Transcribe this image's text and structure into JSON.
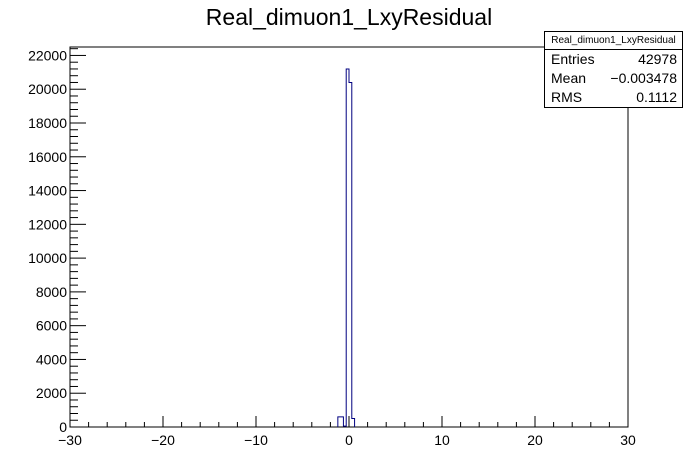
{
  "chart_data": {
    "type": "histogram",
    "title": "Real_dimuon1_LxyResidual",
    "xlabel": "",
    "ylabel": "",
    "xlim": [
      -30,
      30
    ],
    "ylim": [
      0,
      22500
    ],
    "x_ticks": [
      -30,
      -20,
      -10,
      0,
      10,
      20,
      30
    ],
    "x_tick_labels": [
      "−30",
      "−20",
      "−10",
      "0",
      "10",
      "20",
      "30"
    ],
    "y_ticks": [
      0,
      2000,
      4000,
      6000,
      8000,
      10000,
      12000,
      14000,
      16000,
      18000,
      20000,
      22000
    ],
    "y_tick_labels": [
      "0",
      "2000",
      "4000",
      "6000",
      "8000",
      "10000",
      "12000",
      "14000",
      "16000",
      "18000",
      "20000",
      "22000"
    ],
    "bin_width": 0.3,
    "bins": [
      {
        "x": -1.2,
        "value": 600
      },
      {
        "x": -0.9,
        "value": 600
      },
      {
        "x": -0.6,
        "value": 50
      },
      {
        "x": -0.3,
        "value": 21200
      },
      {
        "x": 0.0,
        "value": 20400
      },
      {
        "x": 0.3,
        "value": 500
      }
    ],
    "line_color": "#000080",
    "stats": {
      "title": "Real_dimuon1_LxyResidual",
      "entries_label": "Entries",
      "entries": "42978",
      "mean_label": "Mean",
      "mean": "−0.003478",
      "rms_label": "RMS",
      "rms": "0.1112"
    }
  }
}
